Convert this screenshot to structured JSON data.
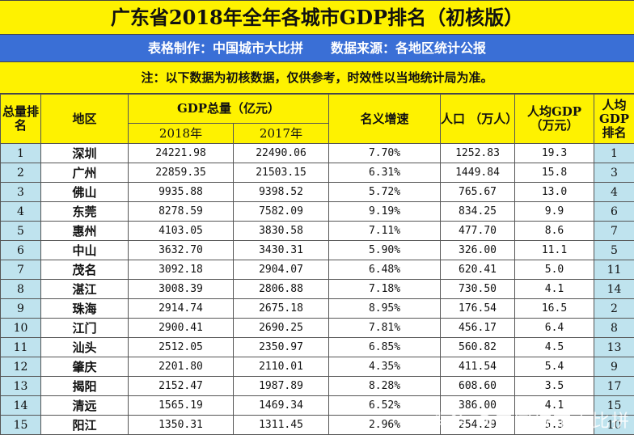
{
  "title": "广东省2018年全年各城市GDP排名（初核版）",
  "credit": {
    "maker": "表格制作：中国城市大比拼",
    "source": "数据来源：各地区统计公报"
  },
  "note": "注：以下数据为初核数据，仅供参考，时效性以当地统计局为准。",
  "headers": {
    "rank": "总量排名",
    "region": "地区",
    "gdp_total": "GDP总量（亿元）",
    "y2018": "2018年",
    "y2017": "2017年",
    "growth": "名义增速",
    "population": "人口 （万人）",
    "per_capita": "人均GDP（万元）",
    "per_capita_rank": "人均GDP排名"
  },
  "rows": [
    {
      "rank": "1",
      "region": "深圳",
      "y2018": "24221.98",
      "y2017": "22490.06",
      "growth": "7.70%",
      "population": "1252.83",
      "per_capita": "19.3",
      "per_capita_rank": "1"
    },
    {
      "rank": "2",
      "region": "广州",
      "y2018": "22859.35",
      "y2017": "21503.15",
      "growth": "6.31%",
      "population": "1449.84",
      "per_capita": "15.8",
      "per_capita_rank": "3"
    },
    {
      "rank": "3",
      "region": "佛山",
      "y2018": "9935.88",
      "y2017": "9398.52",
      "growth": "5.72%",
      "population": "765.67",
      "per_capita": "13.0",
      "per_capita_rank": "4"
    },
    {
      "rank": "4",
      "region": "东莞",
      "y2018": "8278.59",
      "y2017": "7582.09",
      "growth": "9.19%",
      "population": "834.25",
      "per_capita": "9.9",
      "per_capita_rank": "6"
    },
    {
      "rank": "5",
      "region": "惠州",
      "y2018": "4103.05",
      "y2017": "3830.58",
      "growth": "7.11%",
      "population": "477.70",
      "per_capita": "8.6",
      "per_capita_rank": "7"
    },
    {
      "rank": "6",
      "region": "中山",
      "y2018": "3632.70",
      "y2017": "3430.31",
      "growth": "5.90%",
      "population": "326.00",
      "per_capita": "11.1",
      "per_capita_rank": "5"
    },
    {
      "rank": "7",
      "region": "茂名",
      "y2018": "3092.18",
      "y2017": "2904.07",
      "growth": "6.48%",
      "population": "620.41",
      "per_capita": "5.0",
      "per_capita_rank": "11"
    },
    {
      "rank": "8",
      "region": "湛江",
      "y2018": "3008.39",
      "y2017": "2806.88",
      "growth": "7.18%",
      "population": "730.50",
      "per_capita": "4.1",
      "per_capita_rank": "14"
    },
    {
      "rank": "9",
      "region": "珠海",
      "y2018": "2914.74",
      "y2017": "2675.18",
      "growth": "8.95%",
      "population": "176.54",
      "per_capita": "16.5",
      "per_capita_rank": "2"
    },
    {
      "rank": "10",
      "region": "江门",
      "y2018": "2900.41",
      "y2017": "2690.25",
      "growth": "7.81%",
      "population": "456.17",
      "per_capita": "6.4",
      "per_capita_rank": "8"
    },
    {
      "rank": "11",
      "region": "汕头",
      "y2018": "2512.05",
      "y2017": "2350.97",
      "growth": "6.85%",
      "population": "560.82",
      "per_capita": "4.5",
      "per_capita_rank": "13"
    },
    {
      "rank": "12",
      "region": "肇庆",
      "y2018": "2201.80",
      "y2017": "2110.01",
      "growth": "4.35%",
      "population": "411.54",
      "per_capita": "5.4",
      "per_capita_rank": "9"
    },
    {
      "rank": "13",
      "region": "揭阳",
      "y2018": "2152.47",
      "y2017": "1987.89",
      "growth": "8.28%",
      "population": "608.60",
      "per_capita": "3.5",
      "per_capita_rank": "17"
    },
    {
      "rank": "14",
      "region": "清远",
      "y2018": "1565.19",
      "y2017": "1469.34",
      "growth": "6.52%",
      "population": "386.00",
      "per_capita": "4.1",
      "per_capita_rank": "15"
    },
    {
      "rank": "15",
      "region": "阳江",
      "y2018": "1350.31",
      "y2017": "1311.45",
      "growth": "2.96%",
      "population": "254.29",
      "per_capita": "5.3",
      "per_capita_rank": "10"
    }
  ],
  "watermark": "头条 @中国城市大比拼"
}
